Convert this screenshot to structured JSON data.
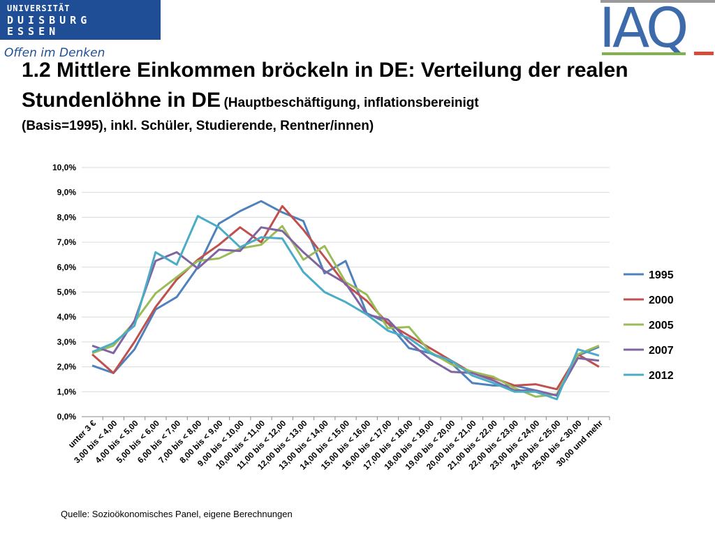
{
  "header": {
    "university_line1": "UNIVERSITÄT",
    "university_line2": "DUISBURG",
    "university_line3": "ESSEN",
    "slogan": "Offen im Denken",
    "institute_logo": "IAQ"
  },
  "slide": {
    "title_main": "1.2 Mittlere Einkommen bröckeln in DE: Verteilung der realen Stundenlöhne in DE",
    "title_sub": "(Hauptbeschäftigung, inflationsbereinigt",
    "title_line3": "(Basis=1995), inkl. Schüler, Studierende, Rentner/innen)",
    "source": "Quelle: Sozioökonomisches Panel, eigene Berechnungen"
  },
  "colors": {
    "1995": "#4f81bd",
    "2000": "#c0504d",
    "2005": "#9bbb59",
    "2007": "#8064a2",
    "2012": "#4bacc6",
    "grid": "#d9d9d9",
    "university_blue": "#1f4e96"
  },
  "chart_data": {
    "type": "line",
    "title": "",
    "xlabel": "",
    "ylabel": "",
    "ylim": [
      0,
      10
    ],
    "yticks": [
      "0,0%",
      "1,0%",
      "2,0%",
      "3,0%",
      "4,0%",
      "5,0%",
      "6,0%",
      "7,0%",
      "8,0%",
      "9,0%",
      "10,0%"
    ],
    "grid": true,
    "legend_position": "right",
    "categories": [
      "unter 3 €",
      "3,00 bis < 4,00",
      "4,00 bis < 5,00",
      "5,00 bis < 6,00",
      "6,00 bis < 7,00",
      "7,00 bis < 8,00",
      "8,00 bis < 9,00",
      "9,00 bis < 10,00",
      "10,00 bis < 11,00",
      "11,00 bis < 12,00",
      "12,00 bis < 13,00",
      "13,00 bis < 14,00",
      "14,00 bis < 15,00",
      "15,00 bis < 16,00",
      "16,00 bis < 17,00",
      "17,00 bis < 18,00",
      "18,00 bis < 19,00",
      "19,00 bis < 20,00",
      "20,00 bis < 21,00",
      "21,00 bis < 22,00",
      "22,00 bis < 23,00",
      "23,00 bis < 24,00",
      "24,00 bis < 25,00",
      "25,00 bis < 30,00",
      "30,00 und mehr"
    ],
    "series": [
      {
        "name": "1995",
        "color": "#4f81bd",
        "values": [
          2.05,
          1.75,
          2.7,
          4.3,
          4.8,
          6.0,
          7.75,
          8.25,
          8.65,
          8.2,
          7.85,
          5.75,
          6.25,
          4.15,
          3.75,
          2.75,
          2.55,
          2.15,
          1.35,
          1.25,
          1.25,
          1.05,
          0.85,
          2.45,
          2.8
        ]
      },
      {
        "name": "2000",
        "color": "#c0504d",
        "values": [
          2.5,
          1.75,
          3.0,
          4.4,
          5.5,
          6.3,
          6.9,
          7.6,
          7.0,
          8.45,
          7.5,
          6.4,
          5.3,
          4.65,
          3.75,
          3.25,
          2.75,
          2.25,
          1.75,
          1.55,
          1.25,
          1.3,
          1.1,
          2.5,
          2.0
        ]
      },
      {
        "name": "2005",
        "color": "#9bbb59",
        "values": [
          2.55,
          2.85,
          3.8,
          4.95,
          5.6,
          6.25,
          6.35,
          6.75,
          6.9,
          7.65,
          6.3,
          6.85,
          5.4,
          4.9,
          3.55,
          3.6,
          2.6,
          2.1,
          1.8,
          1.6,
          1.15,
          0.8,
          0.9,
          2.5,
          2.85
        ]
      },
      {
        "name": "2007",
        "color": "#8064a2",
        "values": [
          2.85,
          2.55,
          3.85,
          6.25,
          6.6,
          5.95,
          6.7,
          6.65,
          7.6,
          7.45,
          6.6,
          5.85,
          5.35,
          4.1,
          3.9,
          3.0,
          2.3,
          1.8,
          1.75,
          1.45,
          1.05,
          1.05,
          0.85,
          2.35,
          2.25
        ]
      },
      {
        "name": "2012",
        "color": "#4bacc6",
        "values": [
          2.6,
          2.95,
          3.65,
          6.6,
          6.1,
          8.05,
          7.6,
          6.8,
          7.2,
          7.15,
          5.8,
          5.0,
          4.6,
          4.1,
          3.45,
          3.15,
          2.55,
          2.25,
          1.65,
          1.35,
          1.0,
          1.0,
          0.7,
          2.7,
          2.45
        ]
      }
    ]
  }
}
